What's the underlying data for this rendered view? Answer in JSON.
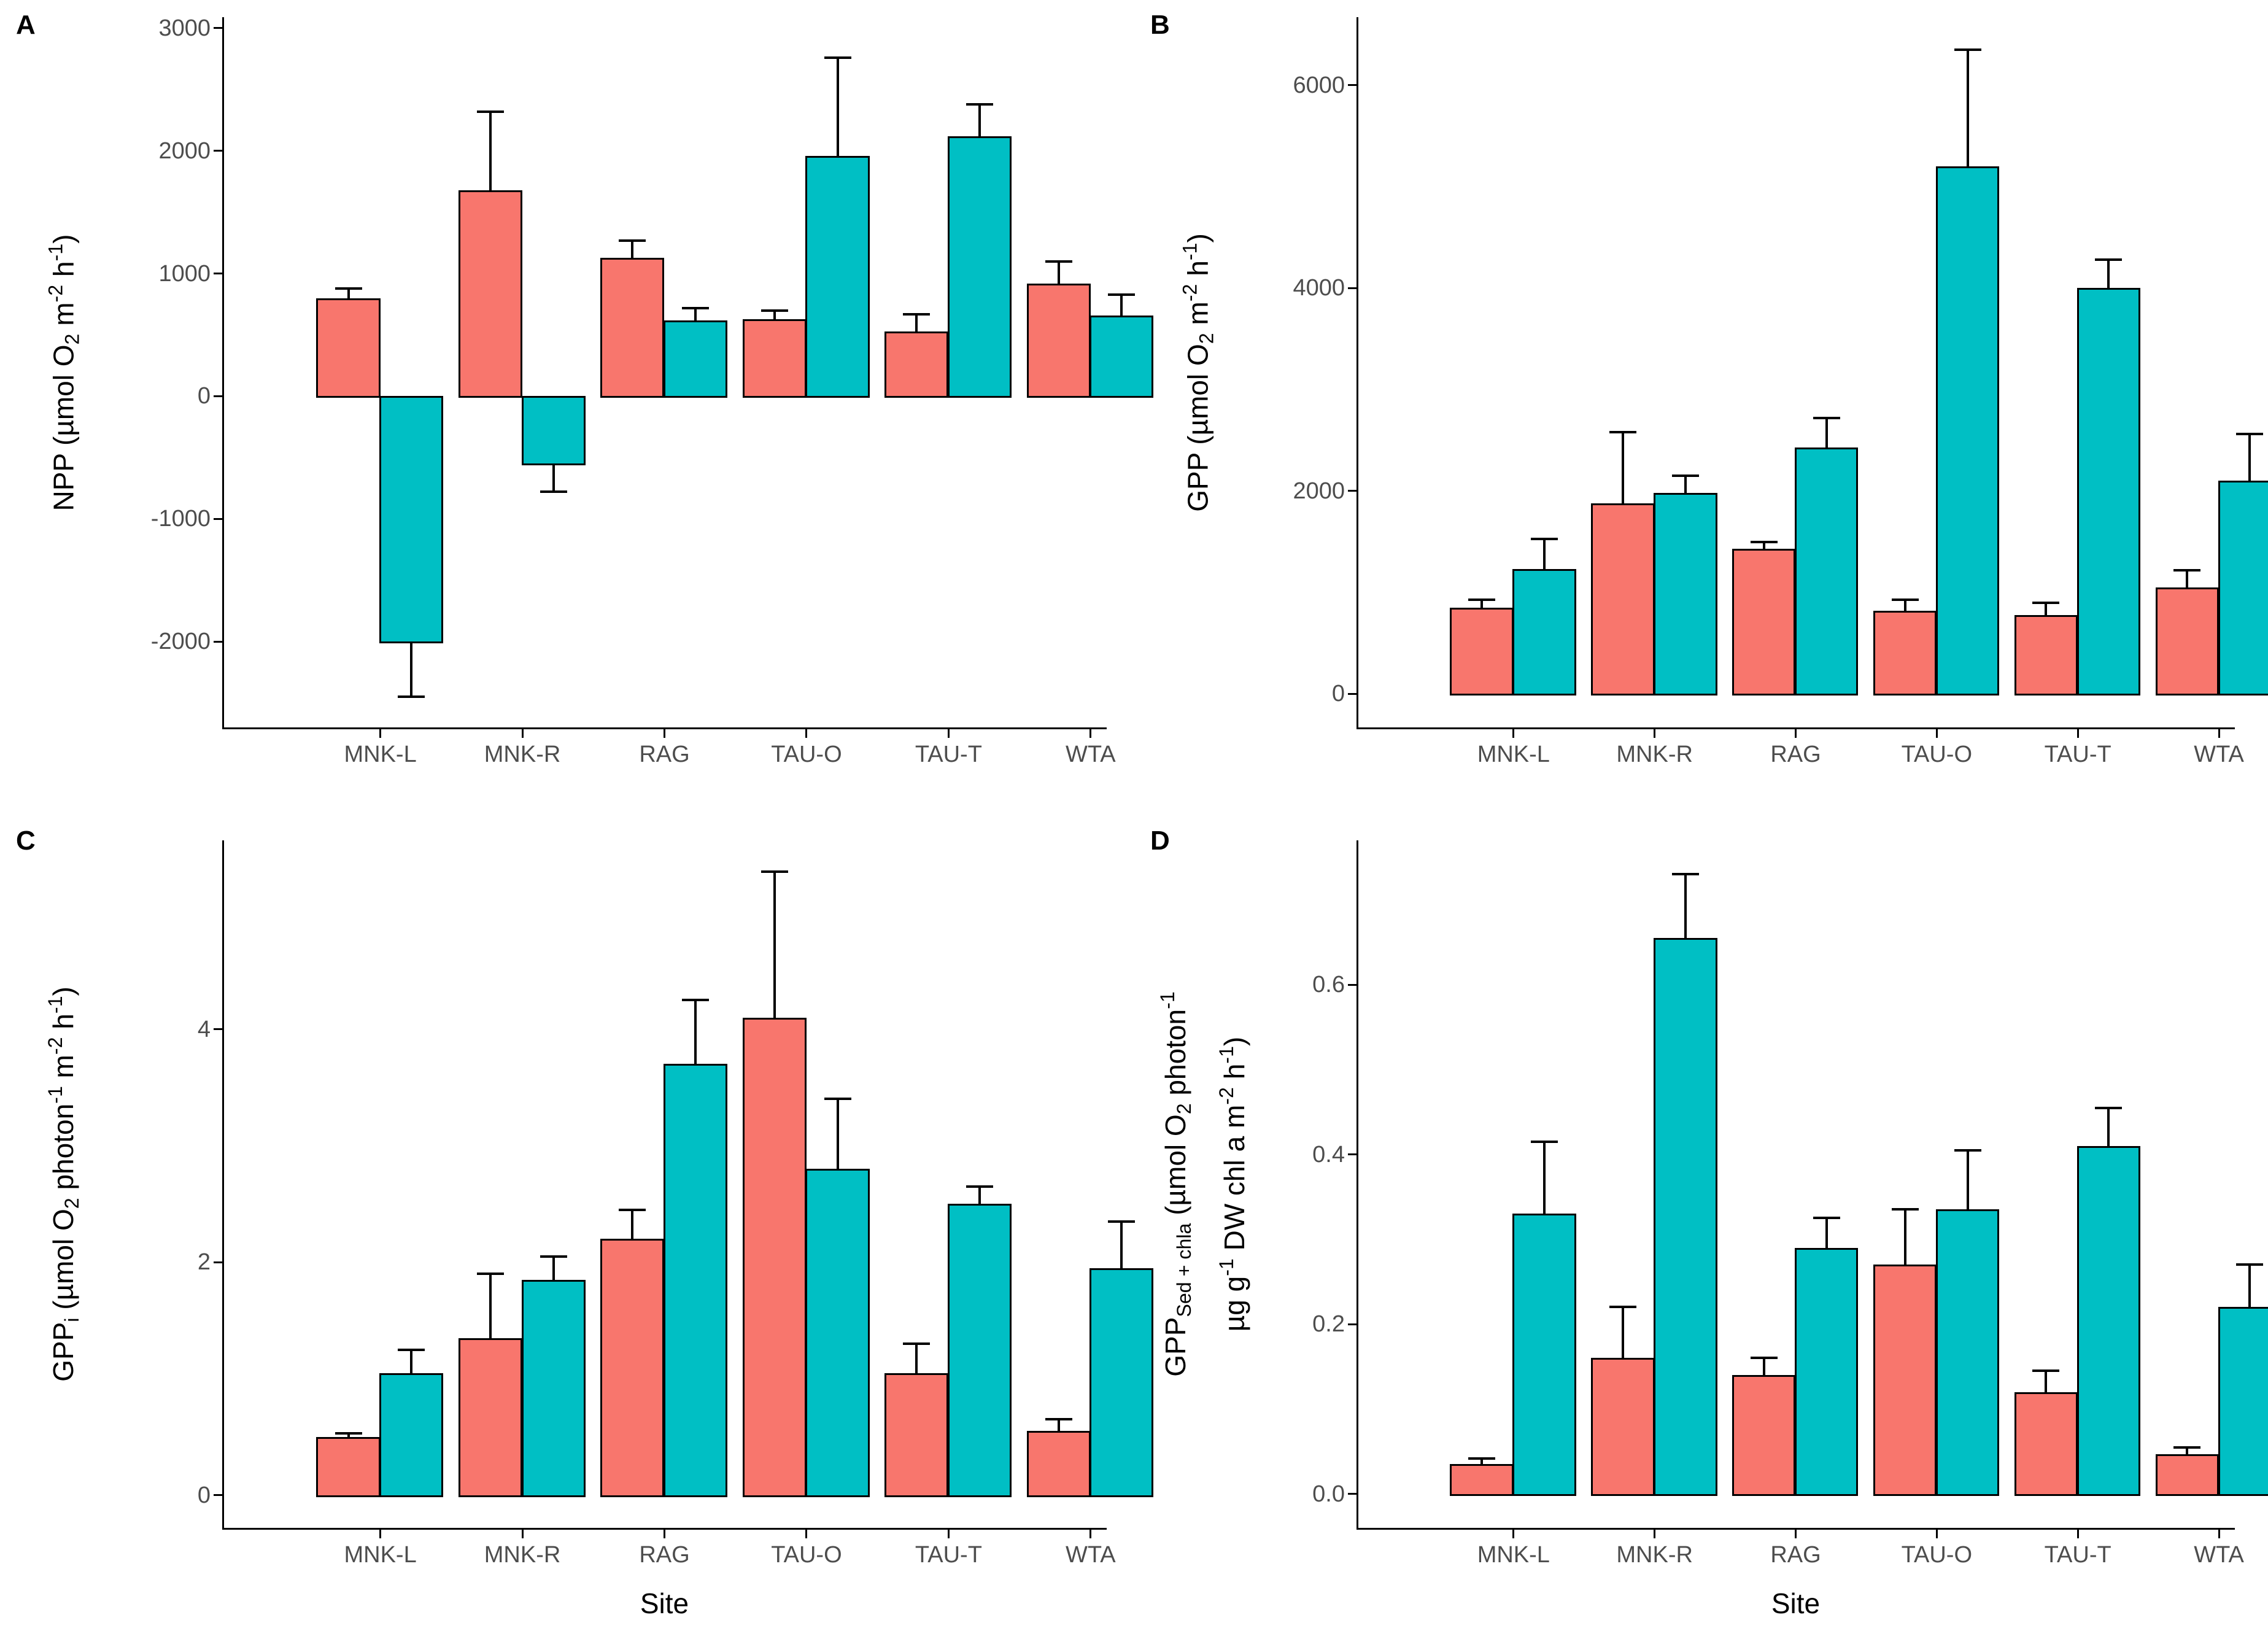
{
  "figure": {
    "background": "#FFFFFF",
    "axis_color": "#000000",
    "tick_label_color": "#4D4D4D",
    "bar_outline_color": "#000000",
    "bar_colors": {
      "coral": "#F8766D",
      "teal": "#00BFC4"
    }
  },
  "chart_data": [
    {
      "type": "bar",
      "panel_tag": "A",
      "ylabel_lines": [
        "NPP (µmol O~2~ m^-2^ h^-1^)"
      ],
      "xlabel": "",
      "categories": [
        "MNK-L",
        "MNK-R",
        "RAG",
        "TAU-O",
        "TAU-T",
        "WTA"
      ],
      "ylim": [
        -2700,
        3090
      ],
      "grid": false,
      "legend": "none",
      "yticks": [
        {
          "value": -2000,
          "label": "-2000"
        },
        {
          "value": -1000,
          "label": "-1000"
        },
        {
          "value": 0,
          "label": "0"
        },
        {
          "value": 1000,
          "label": "1000"
        },
        {
          "value": 2000,
          "label": "2000"
        },
        {
          "value": 3000,
          "label": "3000"
        }
      ],
      "series": [
        {
          "name": "coral",
          "color": "#F8766D",
          "values": [
            800,
            1680,
            1130,
            630,
            530,
            920
          ],
          "error_tops": [
            880,
            2320,
            1270,
            700,
            670,
            1100
          ]
        },
        {
          "name": "teal",
          "color": "#00BFC4",
          "values": [
            -2000,
            -550,
            620,
            1960,
            2120,
            660
          ],
          "error_tops": [
            -2450,
            -780,
            720,
            2760,
            2380,
            830
          ]
        }
      ]
    },
    {
      "type": "bar",
      "panel_tag": "B",
      "ylabel_lines": [
        "GPP (µmol O~2~ m^-2^ h^-1^)"
      ],
      "xlabel": "",
      "categories": [
        "MNK-L",
        "MNK-R",
        "RAG",
        "TAU-O",
        "TAU-T",
        "WTA"
      ],
      "ylim": [
        -330,
        6670
      ],
      "grid": false,
      "legend": "none",
      "yticks": [
        {
          "value": 0,
          "label": "0"
        },
        {
          "value": 2000,
          "label": "2000"
        },
        {
          "value": 4000,
          "label": "4000"
        },
        {
          "value": 6000,
          "label": "6000"
        }
      ],
      "series": [
        {
          "name": "coral",
          "color": "#F8766D",
          "values": [
            850,
            1880,
            1430,
            820,
            780,
            1050
          ],
          "error_tops": [
            930,
            2580,
            1500,
            930,
            900,
            1220
          ]
        },
        {
          "name": "teal",
          "color": "#00BFC4",
          "values": [
            1230,
            1980,
            2430,
            5200,
            4000,
            2100
          ],
          "error_tops": [
            1530,
            2150,
            2720,
            6350,
            4280,
            2560
          ]
        }
      ]
    },
    {
      "type": "bar",
      "panel_tag": "C",
      "ylabel_lines": [
        "GPP~i~ (µmol O~2~ photon^-1^ m^-2^ h^-1^)"
      ],
      "xlabel": "Site",
      "categories": [
        "MNK-L",
        "MNK-R",
        "RAG",
        "TAU-O",
        "TAU-T",
        "WTA"
      ],
      "ylim": [
        -0.28,
        5.62
      ],
      "grid": false,
      "legend": "none",
      "yticks": [
        {
          "value": 0,
          "label": "0"
        },
        {
          "value": 2,
          "label": "2"
        },
        {
          "value": 4,
          "label": "4"
        }
      ],
      "series": [
        {
          "name": "coral",
          "color": "#F8766D",
          "values": [
            0.5,
            1.35,
            2.2,
            4.1,
            1.05,
            0.55
          ],
          "error_tops": [
            0.53,
            1.9,
            2.45,
            5.35,
            1.3,
            0.65
          ]
        },
        {
          "name": "teal",
          "color": "#00BFC4",
          "values": [
            1.05,
            1.85,
            3.7,
            2.8,
            2.5,
            1.95
          ],
          "error_tops": [
            1.25,
            2.05,
            4.25,
            3.4,
            2.65,
            2.35
          ]
        }
      ]
    },
    {
      "type": "bar",
      "panel_tag": "D",
      "ylabel_lines": [
        "GPP~Sed + chla~ (µmol O~2~ photon^-1^",
        "µg g^-1^ DW chl a m^-2^ h^-1^)"
      ],
      "xlabel": "Site",
      "categories": [
        "MNK-L",
        "MNK-R",
        "RAG",
        "TAU-O",
        "TAU-T",
        "WTA"
      ],
      "ylim": [
        -0.04,
        0.77
      ],
      "grid": false,
      "legend": "none",
      "yticks": [
        {
          "value": 0,
          "label": "0.0"
        },
        {
          "value": 0.2,
          "label": "0.2"
        },
        {
          "value": 0.4,
          "label": "0.4"
        },
        {
          "value": 0.6,
          "label": "0.6"
        }
      ],
      "series": [
        {
          "name": "coral",
          "color": "#F8766D",
          "values": [
            0.035,
            0.16,
            0.14,
            0.27,
            0.12,
            0.047
          ],
          "error_tops": [
            0.042,
            0.22,
            0.16,
            0.335,
            0.145,
            0.055
          ]
        },
        {
          "name": "teal",
          "color": "#00BFC4",
          "values": [
            0.33,
            0.655,
            0.29,
            0.335,
            0.41,
            0.22
          ],
          "error_tops": [
            0.415,
            0.73,
            0.325,
            0.405,
            0.455,
            0.27
          ]
        }
      ]
    }
  ]
}
